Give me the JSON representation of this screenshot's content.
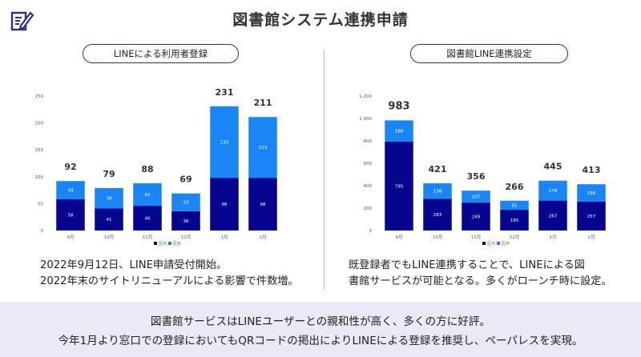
{
  "title": "図書館システム連携申請",
  "left_panel": {
    "pill": "LINEによる利用者登録",
    "caption": [
      "2022年9月12日、LINE申請受付開始。",
      "2022年末のサイトリニューアルによる影響で件数増。"
    ]
  },
  "right_panel": {
    "pill": "図書館LINE連携設定",
    "caption": [
      "既登録者でもLINE連携することで、LINEによる図",
      "書館サービスが可能となる。多くがローンチ時に設定。"
    ]
  },
  "bottom": {
    "lines": [
      "図書館サービスはLINEユーザーとの親和性が高く、多くの方に好評。",
      "今年1月より窓口での登録においてもQRコードの掲出によりLINEによる登録を推奨し、ペーパレスを実現。"
    ]
  },
  "colors": {
    "inside": "#05058f",
    "outside": "#1a86f5"
  },
  "chart_data": [
    {
      "type": "bar",
      "stacked": true,
      "categories": [
        "9月",
        "10月",
        "11月",
        "12月",
        "1月",
        "2月"
      ],
      "series": [
        {
          "name": "区内",
          "values": [
            58,
            41,
            46,
            36,
            98,
            98
          ]
        },
        {
          "name": "区外",
          "values": [
            34,
            38,
            42,
            33,
            133,
            113
          ]
        }
      ],
      "totals": [
        92,
        79,
        88,
        69,
        231,
        211
      ],
      "ylim": [
        0,
        250
      ],
      "yticks": [
        "0",
        "50",
        "100",
        "150",
        "200",
        "250"
      ],
      "legend_position": "bottom"
    },
    {
      "type": "bar",
      "stacked": true,
      "categories": [
        "9月",
        "10月",
        "11月",
        "12月",
        "1月",
        "2月"
      ],
      "series": [
        {
          "name": "区内",
          "values": [
            795,
            283,
            249,
            185,
            267,
            257
          ]
        },
        {
          "name": "区外",
          "values": [
            188,
            138,
            107,
            81,
            178,
            156
          ]
        }
      ],
      "totals": [
        983,
        421,
        356,
        266,
        445,
        413
      ],
      "ylim": [
        0,
        1200
      ],
      "yticks": [
        "0",
        "200",
        "400",
        "600",
        "800",
        "1,000",
        "1,200"
      ],
      "legend_position": "bottom"
    }
  ]
}
